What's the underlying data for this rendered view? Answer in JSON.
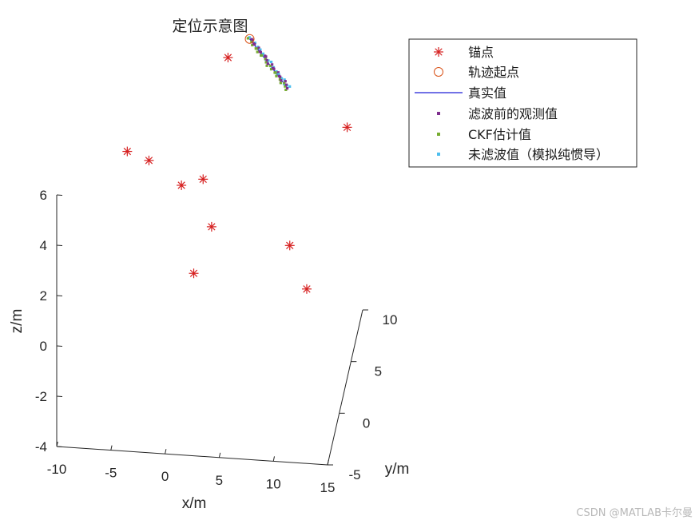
{
  "chart_data": {
    "type": "scatter",
    "title": "定位示意图",
    "xlabel": "x/m",
    "ylabel": "y/m",
    "zlabel": "z/m",
    "xlim": [
      -10,
      15
    ],
    "ylim": [
      -5,
      10
    ],
    "zlim": [
      -4,
      6
    ],
    "xticks": [
      "-10",
      "-5",
      "0",
      "5",
      "10",
      "15"
    ],
    "yticks": [
      "-5",
      "0",
      "5",
      "10"
    ],
    "zticks": [
      "-4",
      "-2",
      "0",
      "2",
      "4",
      "6"
    ],
    "legend_position": "top-right",
    "colors": {
      "anchor": "#d62020",
      "start": "#d95319",
      "truth": "#1f1fd6",
      "obs": "#7e2f8e",
      "ckf": "#77ac30",
      "ins": "#4dbeee",
      "axis": "#262626"
    },
    "series": [
      {
        "name": "锚点",
        "marker": "asterisk"
      },
      {
        "name": "轨迹起点",
        "marker": "circle"
      },
      {
        "name": "真实值",
        "marker": "line"
      },
      {
        "name": "滤波前的观测值",
        "marker": "square"
      },
      {
        "name": "CKF估计值",
        "marker": "square"
      },
      {
        "name": "未滤波值（模拟纯惯导）",
        "marker": "square"
      }
    ],
    "anchors": [
      {
        "x": -5,
        "y": 2,
        "z": 5.0
      },
      {
        "x": -3,
        "y": 2,
        "z": 4.7
      },
      {
        "x": 3,
        "y": 8,
        "z": 6.5
      },
      {
        "x": 2,
        "y": 2,
        "z": 4.1
      },
      {
        "x": 0,
        "y": 2,
        "z": 3.8
      },
      {
        "x": 3,
        "y": 1,
        "z": 2.65
      },
      {
        "x": 2,
        "y": -2,
        "z": 2.0
      },
      {
        "x": 10,
        "y": 2,
        "z": 1.7
      },
      {
        "x": 12,
        "y": 0,
        "z": 0.85
      },
      {
        "x": 14,
        "y": 8,
        "z": 4.05
      }
    ],
    "trajectory_start": {
      "x": 5,
      "y": 8,
      "z": 7.3
    },
    "trajectory_end": {
      "x": 8.5,
      "y": 8,
      "z": 5.45
    }
  }
}
